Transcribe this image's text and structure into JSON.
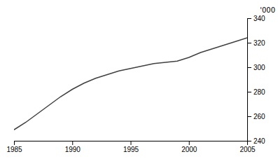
{
  "chart_data": {
    "type": "line",
    "ylabel": "'000",
    "x": [
      1985,
      1986,
      1987,
      1988,
      1989,
      1990,
      1991,
      1992,
      1993,
      1994,
      1995,
      1996,
      1997,
      1998,
      1999,
      2000,
      2001,
      2002,
      2003,
      2004,
      2005
    ],
    "values": [
      249,
      255,
      262,
      269,
      276,
      282,
      287,
      291,
      294,
      297,
      299,
      301,
      303,
      304,
      305,
      308,
      312,
      315,
      318,
      321,
      324
    ],
    "color": "#404040",
    "xlim": [
      1985,
      2005
    ],
    "xticks": [
      1985,
      1990,
      1995,
      2000,
      2005
    ],
    "ylim": [
      240,
      340
    ],
    "yticks": [
      240,
      260,
      280,
      300,
      320,
      340
    ]
  }
}
